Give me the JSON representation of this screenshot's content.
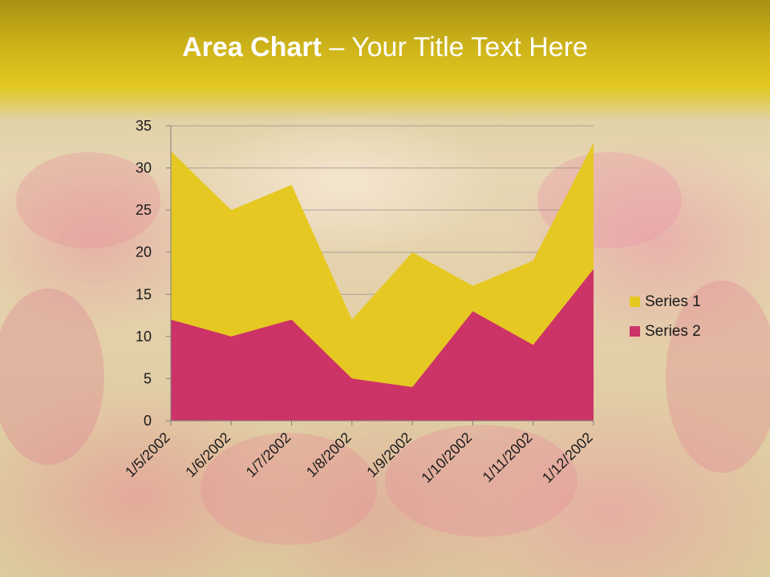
{
  "slide": {
    "title_bold": "Area Chart",
    "title_rest": " – Your Title Text Here",
    "header_color": "#d9bf1c"
  },
  "chart_data": {
    "type": "area",
    "stacked": false,
    "categories": [
      "1/5/2002",
      "1/6/2002",
      "1/7/2002",
      "1/8/2002",
      "1/9/2002",
      "1/10/2002",
      "1/11/2002",
      "1/12/2002"
    ],
    "series": [
      {
        "name": "Series 1",
        "color": "#e6c823",
        "values": [
          32,
          25,
          28,
          12,
          20,
          16,
          19,
          33
        ]
      },
      {
        "name": "Series 2",
        "color": "#cc3366",
        "values": [
          12,
          10,
          12,
          5,
          4,
          13,
          9,
          18
        ]
      }
    ],
    "yticks": [
      "0",
      "5",
      "10",
      "15",
      "20",
      "25",
      "30",
      "35"
    ],
    "ylim": [
      0,
      35
    ],
    "grid": true,
    "legend_position": "right",
    "xlabel": "",
    "ylabel": ""
  }
}
